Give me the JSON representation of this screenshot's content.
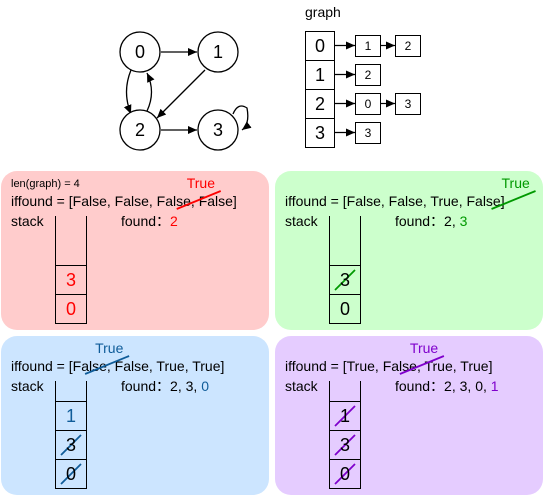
{
  "graph_diagram": {
    "nodes": [
      "0",
      "1",
      "2",
      "3"
    ],
    "edges": [
      [
        "0",
        "1"
      ],
      [
        "1",
        "2"
      ],
      [
        "0",
        "2"
      ],
      [
        "2",
        "0"
      ],
      [
        "2",
        "3"
      ],
      [
        "3",
        "3"
      ]
    ]
  },
  "adjacency_list": {
    "title": "graph",
    "rows": [
      {
        "index": "0",
        "neighbors": [
          "1",
          "2"
        ]
      },
      {
        "index": "1",
        "neighbors": [
          "2"
        ]
      },
      {
        "index": "2",
        "neighbors": [
          "0",
          "3"
        ]
      },
      {
        "index": "3",
        "neighbors": [
          "3"
        ]
      }
    ]
  },
  "panels": [
    {
      "id": "step1",
      "bg_color": "#FFCCCC",
      "accent_color": "#FF0000",
      "len_label": "len(graph) = 4",
      "iffound_prefix": "iffound = [",
      "iffound_items": [
        "False",
        "False",
        "False",
        "False"
      ],
      "iffound_suffix": "]",
      "true_label": "True",
      "struck_index": 2,
      "stack_label": "stack",
      "found_label": "found：",
      "found_values": [
        "2"
      ],
      "stack_cells": [
        "3",
        "0"
      ],
      "struck_cells": []
    },
    {
      "id": "step2",
      "bg_color": "#CCFFCC",
      "accent_color": "#009900",
      "iffound_prefix": "iffound = [",
      "iffound_items": [
        "False",
        "False",
        "True",
        "False"
      ],
      "iffound_suffix": "]",
      "true_label": "True",
      "struck_index": 3,
      "stack_label": "stack",
      "found_label": "found：",
      "found_values": [
        "2",
        "3"
      ],
      "stack_cells": [
        "3",
        "0"
      ],
      "struck_cells": [
        0
      ]
    },
    {
      "id": "step3",
      "bg_color": "#CCE5FF",
      "accent_color": "#0F5C99",
      "iffound_prefix": "iffound = [",
      "iffound_items": [
        "False",
        "False",
        "True",
        "True"
      ],
      "iffound_suffix": "]",
      "true_label": "True",
      "struck_index": 0,
      "stack_label": "stack",
      "found_label": "found：",
      "found_values": [
        "2",
        "3",
        "0"
      ],
      "stack_cells": [
        "1",
        "3",
        "0"
      ],
      "struck_cells": [
        1,
        2
      ]
    },
    {
      "id": "step4",
      "bg_color": "#E5CCFF",
      "accent_color": "#7F00CC",
      "iffound_prefix": "iffound = [",
      "iffound_items": [
        "True",
        "False",
        "True",
        "True"
      ],
      "iffound_suffix": "]",
      "true_label": "True",
      "struck_index": 1,
      "stack_label": "stack",
      "found_label": "found：",
      "found_values": [
        "2",
        "3",
        "0",
        "1"
      ],
      "stack_cells": [
        "1",
        "3",
        "0"
      ],
      "struck_cells": [
        0,
        1,
        2
      ]
    }
  ]
}
